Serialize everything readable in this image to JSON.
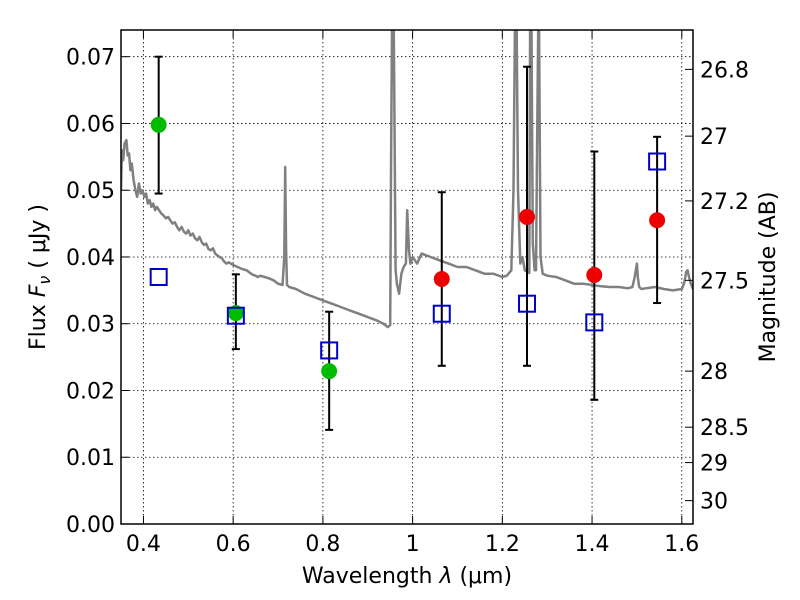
{
  "chart_data": {
    "type": "scatter",
    "xlabel_prefix": "Wavelength",
    "xlabel_symbol": "λ",
    "xlabel_unit": "(μm)",
    "ylabel_prefix": "Flux",
    "ylabel_symbol": "F",
    "ylabel_sub": "ν",
    "ylabel_unit": "( μJy )",
    "ylabel_right": "Magnitude (AB)",
    "xlim": [
      0.35,
      1.625
    ],
    "ylim": [
      0.0,
      0.074
    ],
    "x_ticks": [
      {
        "value": 0.4,
        "label": "0.4"
      },
      {
        "value": 0.6,
        "label": "0.6"
      },
      {
        "value": 0.8,
        "label": "0.8"
      },
      {
        "value": 1.0,
        "label": "1"
      },
      {
        "value": 1.2,
        "label": "1.2"
      },
      {
        "value": 1.4,
        "label": "1.4"
      },
      {
        "value": 1.6,
        "label": "1.6"
      }
    ],
    "y_ticks": [
      {
        "value": 0.0,
        "label": "0.00"
      },
      {
        "value": 0.01,
        "label": "0.01"
      },
      {
        "value": 0.02,
        "label": "0.02"
      },
      {
        "value": 0.03,
        "label": "0.03"
      },
      {
        "value": 0.04,
        "label": "0.04"
      },
      {
        "value": 0.05,
        "label": "0.05"
      },
      {
        "value": 0.06,
        "label": "0.06"
      },
      {
        "value": 0.07,
        "label": "0.07"
      }
    ],
    "right_ticks": [
      {
        "flux": 0.0681,
        "label": "26.8"
      },
      {
        "flux": 0.0581,
        "label": "27"
      },
      {
        "flux": 0.0484,
        "label": "27.2"
      },
      {
        "flux": 0.0365,
        "label": "27.5"
      },
      {
        "flux": 0.0229,
        "label": "28"
      },
      {
        "flux": 0.0145,
        "label": "28.5"
      },
      {
        "flux": 0.0092,
        "label": "29"
      },
      {
        "flux": 0.0035,
        "label": "30"
      }
    ],
    "colors": {
      "model": "#808080",
      "green": "#00bb00",
      "red": "#ee0000",
      "blue": "#0000cc",
      "errorbar": "#000000"
    },
    "model_spectrum": {
      "name": "model SED",
      "x": [
        0.35,
        0.352,
        0.355,
        0.358,
        0.362,
        0.365,
        0.368,
        0.371,
        0.374,
        0.378,
        0.382,
        0.386,
        0.39,
        0.394,
        0.398,
        0.402,
        0.406,
        0.41,
        0.414,
        0.418,
        0.422,
        0.426,
        0.43,
        0.435,
        0.44,
        0.445,
        0.45,
        0.455,
        0.46,
        0.465,
        0.47,
        0.475,
        0.48,
        0.485,
        0.49,
        0.495,
        0.5,
        0.505,
        0.51,
        0.515,
        0.52,
        0.525,
        0.53,
        0.535,
        0.54,
        0.545,
        0.55,
        0.555,
        0.56,
        0.565,
        0.57,
        0.575,
        0.58,
        0.585,
        0.59,
        0.6,
        0.61,
        0.62,
        0.63,
        0.64,
        0.645,
        0.65,
        0.655,
        0.66,
        0.67,
        0.68,
        0.69,
        0.7,
        0.71,
        0.714,
        0.716,
        0.718,
        0.72,
        0.725,
        0.74,
        0.76,
        0.78,
        0.8,
        0.82,
        0.84,
        0.86,
        0.88,
        0.9,
        0.92,
        0.935,
        0.945,
        0.95,
        0.952,
        0.954,
        0.956,
        0.958,
        0.96,
        0.962,
        0.965,
        0.97,
        0.975,
        0.98,
        0.985,
        0.988,
        0.992,
        0.995,
        1.0,
        1.005,
        1.01,
        1.02,
        1.04,
        1.06,
        1.08,
        1.1,
        1.12,
        1.14,
        1.16,
        1.18,
        1.2,
        1.21,
        1.22,
        1.225,
        1.228,
        1.23,
        1.232,
        1.235,
        1.24,
        1.245,
        1.25,
        1.255,
        1.26,
        1.262,
        1.265,
        1.268,
        1.272,
        1.275,
        1.278,
        1.28,
        1.282,
        1.285,
        1.29,
        1.3,
        1.32,
        1.34,
        1.36,
        1.38,
        1.4,
        1.42,
        1.44,
        1.46,
        1.48,
        1.49,
        1.495,
        1.5,
        1.502,
        1.505,
        1.51,
        1.52,
        1.54,
        1.56,
        1.58,
        1.6,
        1.605,
        1.61,
        1.613,
        1.616,
        1.62,
        1.625
      ],
      "y": [
        0.05,
        0.056,
        0.0545,
        0.057,
        0.0575,
        0.0552,
        0.0555,
        0.053,
        0.054,
        0.0515,
        0.05,
        0.049,
        0.051,
        0.0495,
        0.05,
        0.049,
        0.0495,
        0.048,
        0.0485,
        0.0475,
        0.048,
        0.047,
        0.0475,
        0.047,
        0.0465,
        0.0462,
        0.0458,
        0.046,
        0.0455,
        0.045,
        0.0452,
        0.0445,
        0.044,
        0.0445,
        0.0438,
        0.0435,
        0.044,
        0.0432,
        0.0435,
        0.0428,
        0.0425,
        0.043,
        0.0422,
        0.0418,
        0.042,
        0.0412,
        0.041,
        0.0413,
        0.0405,
        0.0402,
        0.04,
        0.0398,
        0.0393,
        0.039,
        0.0392,
        0.0388,
        0.0385,
        0.0382,
        0.038,
        0.0375,
        0.0373,
        0.0372,
        0.037,
        0.0372,
        0.037,
        0.0368,
        0.0365,
        0.036,
        0.0358,
        0.04,
        0.0535,
        0.041,
        0.0358,
        0.0355,
        0.0352,
        0.0345,
        0.034,
        0.0335,
        0.033,
        0.0325,
        0.032,
        0.0315,
        0.031,
        0.0305,
        0.03,
        0.0295,
        0.0298,
        0.055,
        0.074,
        0.074,
        0.074,
        0.056,
        0.038,
        0.036,
        0.0345,
        0.0375,
        0.0385,
        0.039,
        0.047,
        0.041,
        0.039,
        0.04,
        0.0395,
        0.039,
        0.0405,
        0.04,
        0.0395,
        0.039,
        0.0385,
        0.0385,
        0.038,
        0.0375,
        0.0375,
        0.037,
        0.0372,
        0.038,
        0.05,
        0.074,
        0.074,
        0.074,
        0.05,
        0.039,
        0.04,
        0.038,
        0.0378,
        0.0376,
        0.074,
        0.074,
        0.042,
        0.038,
        0.038,
        0.06,
        0.074,
        0.074,
        0.04,
        0.0375,
        0.0372,
        0.037,
        0.0365,
        0.036,
        0.036,
        0.0358,
        0.0356,
        0.0355,
        0.0355,
        0.0353,
        0.0355,
        0.037,
        0.039,
        0.037,
        0.0355,
        0.0352,
        0.0353,
        0.0355,
        0.0352,
        0.035,
        0.0352,
        0.036,
        0.0378,
        0.038,
        0.037,
        0.036,
        0.0352
      ]
    },
    "series": [
      {
        "name": "green filled circles",
        "marker": "circle",
        "color": "green",
        "x": [
          0.434,
          0.606,
          0.814
        ],
        "y": [
          0.0598,
          0.0316,
          0.0229
        ],
        "yerr_low": [
          0.0495,
          0.0262,
          0.0141
        ],
        "yerr_high": [
          0.07,
          0.0374,
          0.0318
        ]
      },
      {
        "name": "red filled circles",
        "marker": "circle",
        "color": "red",
        "x": [
          1.065,
          1.255,
          1.405,
          1.545
        ],
        "y": [
          0.0367,
          0.046,
          0.0373,
          0.0455
        ],
        "yerr_low": [
          0.0237,
          0.0237,
          0.0186,
          0.0331
        ],
        "yerr_high": [
          0.0497,
          0.0685,
          0.0558,
          0.058
        ]
      },
      {
        "name": "blue open squares",
        "marker": "square",
        "color": "blue",
        "x": [
          0.434,
          0.606,
          0.814,
          1.065,
          1.255,
          1.405,
          1.545
        ],
        "y": [
          0.037,
          0.0312,
          0.026,
          0.0315,
          0.033,
          0.0302,
          0.0543
        ]
      }
    ]
  }
}
